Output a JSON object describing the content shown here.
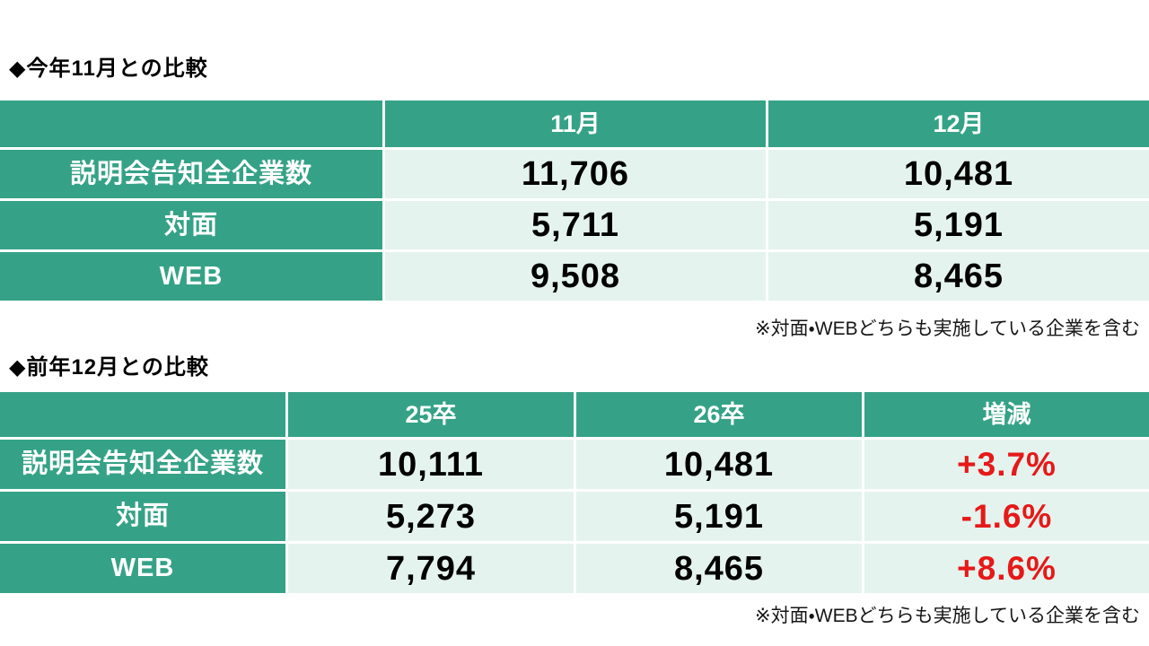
{
  "colors": {
    "header_teal": "#35a287",
    "cell_mint": "#e4f3ee",
    "delta_red": "#e61919",
    "page_bg": "#ffffff"
  },
  "chart_data": [
    {
      "type": "table",
      "title": "◆今年11月との比較",
      "columns": [
        "",
        "11月",
        "12月"
      ],
      "rows": [
        [
          "説明会告知全企業数",
          "11,706",
          "10,481"
        ],
        [
          "対面",
          "5,711",
          "5,191"
        ],
        [
          "WEB",
          "9,508",
          "8,465"
        ]
      ],
      "numeric_values": {
        "11月": [
          11706,
          5711,
          9508
        ],
        "12月": [
          10481,
          5191,
          8465
        ]
      },
      "note": "※対面・WEBどちらも実施している企業を含む"
    },
    {
      "type": "table",
      "title": "◆前年12月との比較",
      "columns": [
        "",
        "25卒",
        "26卒",
        "増減"
      ],
      "rows": [
        [
          "説明会告知全企業数",
          "10,111",
          "10,481",
          "+3.7%"
        ],
        [
          "対面",
          "5,273",
          "5,191",
          "-1.6%"
        ],
        [
          "WEB",
          "7,794",
          "8,465",
          "+8.6%"
        ]
      ],
      "numeric_values": {
        "25卒": [
          10111,
          5273,
          7794
        ],
        "26卒": [
          10481,
          5191,
          8465
        ],
        "増減_pct": [
          3.7,
          -1.6,
          8.6
        ]
      },
      "note": "※対面・WEBどちらも実施している企業を含む"
    }
  ]
}
